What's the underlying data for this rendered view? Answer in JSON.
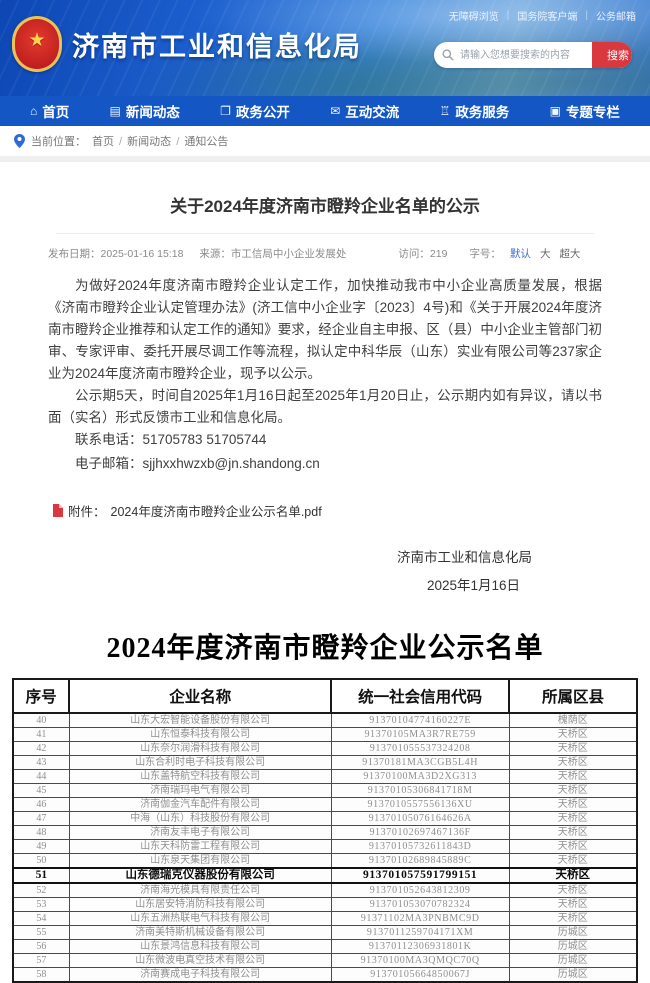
{
  "colors": {
    "accent": "#d9383f",
    "navblue": "#1356c4",
    "linkblue": "#3a6cd3"
  },
  "topbar": {
    "links": [
      "无障碍浏览",
      "国务院客户端",
      "公务邮箱"
    ],
    "separator": "|"
  },
  "header": {
    "site_title": "济南市工业和信息化局",
    "search_placeholder": "请输入您想要搜索的内容",
    "search_button": "搜索"
  },
  "nav": {
    "items": [
      {
        "label": "首页",
        "icon": "home-icon",
        "glyph": "⌂"
      },
      {
        "label": "新闻动态",
        "icon": "news-icon",
        "glyph": "▤"
      },
      {
        "label": "政务公开",
        "icon": "disclosure-icon",
        "glyph": "❐"
      },
      {
        "label": "互动交流",
        "icon": "chat-icon",
        "glyph": "✉"
      },
      {
        "label": "政务服务",
        "icon": "services-icon",
        "glyph": "♖"
      },
      {
        "label": "专题专栏",
        "icon": "columns-icon",
        "glyph": "▣"
      }
    ]
  },
  "breadcrumb": {
    "prefix": "当前位置：",
    "items": [
      "首页",
      "新闻动态",
      "通知公告"
    ],
    "separator": "/"
  },
  "article": {
    "title": "关于2024年度济南市瞪羚企业名单的公示",
    "meta": {
      "publish_label": "发布日期：",
      "publish_value": "2025-01-16 15:18",
      "source_label": "来源：",
      "source_value": "市工信局中小企业发展处",
      "visits_label": "访问：",
      "visits_value": "219",
      "fontsize_label": "字号：",
      "fontsize_options": [
        {
          "label": "默认",
          "active": true
        },
        {
          "label": "大",
          "active": false
        },
        {
          "label": "超大",
          "active": false
        }
      ]
    },
    "paragraphs": [
      "为做好2024年度济南市瞪羚企业认定工作，加快推动我市中小企业高质量发展，根据《济南市瞪羚企业认定管理办法》(济工信中小企业字〔2023〕4号)和《关于开展2024年度济南市瞪羚企业推荐和认定工作的通知》要求，经企业自主申报、区（县）中小企业主管部门初审、专家评审、委托开展尽调工作等流程，拟认定中科华辰（山东）实业有限公司等237家企业为2024年度济南市瞪羚企业，现予以公示。",
      "公示期5天，时间自2025年1月16日起至2025年1月20日止，公示期内如有异议，请以书面（实名）形式反馈市工业和信息化局。"
    ],
    "contact_phone": "联系电话：51705783 51705744",
    "contact_email": "电子邮箱：sjjhxxhwzxb@jn.shandong.cn",
    "attachment_label": "附件：",
    "attachment_name": "2024年度济南市瞪羚企业公示名单.pdf",
    "signature": "济南市工业和信息化局",
    "signature_date": "2025年1月16日"
  },
  "table_section": {
    "title": "2024年度济南市瞪羚企业公示名单",
    "headers": [
      "序号",
      "企业名称",
      "统一社会信用代码",
      "所属区县"
    ],
    "rows": [
      {
        "no": "40",
        "name": "山东大宏智能设备股份有限公司",
        "code": "91370104774160227E",
        "district": "槐荫区",
        "highlight": false
      },
      {
        "no": "41",
        "name": "山东恒泰科技有限公司",
        "code": "91370105MA3R7RE759",
        "district": "天桥区",
        "highlight": false
      },
      {
        "no": "42",
        "name": "山东奈尔润滑科技有限公司",
        "code": "913701055537324208",
        "district": "天桥区",
        "highlight": false
      },
      {
        "no": "43",
        "name": "山东合利时电子科技有限公司",
        "code": "91370181MA3CGB5L4H",
        "district": "天桥区",
        "highlight": false
      },
      {
        "no": "44",
        "name": "山东盖特航空科技有限公司",
        "code": "91370100MA3D2XG313",
        "district": "天桥区",
        "highlight": false
      },
      {
        "no": "45",
        "name": "济南瑞玛电气有限公司",
        "code": "91370105306841718M",
        "district": "天桥区",
        "highlight": false
      },
      {
        "no": "46",
        "name": "济南伽金汽车配件有限公司",
        "code": "9137010557556136XU",
        "district": "天桥区",
        "highlight": false
      },
      {
        "no": "47",
        "name": "中海（山东）科技股份有限公司",
        "code": "91370105076164626A",
        "district": "天桥区",
        "highlight": false
      },
      {
        "no": "48",
        "name": "济南友丰电子有限公司",
        "code": "91370102697467136F",
        "district": "天桥区",
        "highlight": false
      },
      {
        "no": "49",
        "name": "山东天科防雷工程有限公司",
        "code": "91370105732611843D",
        "district": "天桥区",
        "highlight": false
      },
      {
        "no": "50",
        "name": "山东泉天集团有限公司",
        "code": "91370102689845889C",
        "district": "天桥区",
        "highlight": false
      },
      {
        "no": "51",
        "name": "山东德瑞克仪器股份有限公司",
        "code": "913701057591799151",
        "district": "天桥区",
        "highlight": true
      },
      {
        "no": "52",
        "name": "济南海光模具有限责任公司",
        "code": "913701052643812309",
        "district": "天桥区",
        "highlight": false
      },
      {
        "no": "53",
        "name": "山东居安特消防科技有限公司",
        "code": "913701053070782324",
        "district": "天桥区",
        "highlight": false
      },
      {
        "no": "54",
        "name": "山东五洲热联电气科技有限公司",
        "code": "91371102MA3PNBMC9D",
        "district": "天桥区",
        "highlight": false
      },
      {
        "no": "55",
        "name": "济南美特斯机械设备有限公司",
        "code": "9137011259704171XM",
        "district": "历城区",
        "highlight": false
      },
      {
        "no": "56",
        "name": "山东景鸿信息科技有限公司",
        "code": "91370112306931801K",
        "district": "历城区",
        "highlight": false
      },
      {
        "no": "57",
        "name": "山东微波电真空技术有限公司",
        "code": "91370100MA3QMQC70Q",
        "district": "历城区",
        "highlight": false
      },
      {
        "no": "58",
        "name": "济南赛成电子科技有限公司",
        "code": "91370105664850067J",
        "district": "历城区",
        "highlight": false
      }
    ]
  }
}
